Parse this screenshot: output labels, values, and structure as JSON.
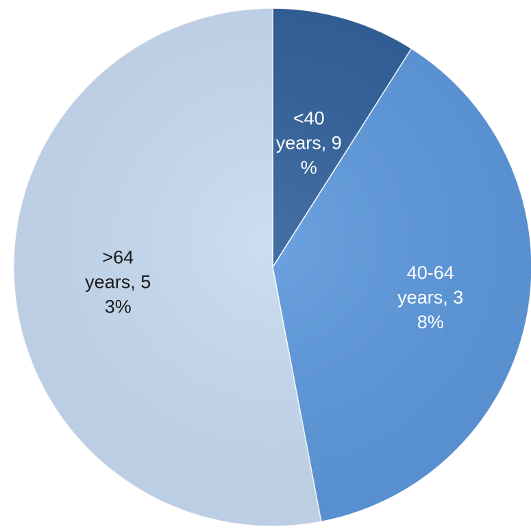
{
  "chart_data": {
    "type": "pie",
    "start_angle_deg": 0,
    "direction": "clockwise",
    "legend": "none",
    "slices": [
      {
        "category": "<40 years",
        "value": 9,
        "label_lines": [
          "<40",
          "years, 9",
          "%"
        ],
        "color": "#2f5f9a",
        "label_color": "#ffffff"
      },
      {
        "category": "40-64 years",
        "value": 38,
        "label_lines": [
          "40-64",
          "years, 3",
          "8%"
        ],
        "color": "#5b97dc",
        "label_color": "#ffffff"
      },
      {
        "category": ">64 years",
        "value": 53,
        "label_lines": [
          ">64",
          "years, 5",
          "3%"
        ],
        "color": "#c7daf1",
        "label_color": "#1a1a1a"
      }
    ]
  }
}
